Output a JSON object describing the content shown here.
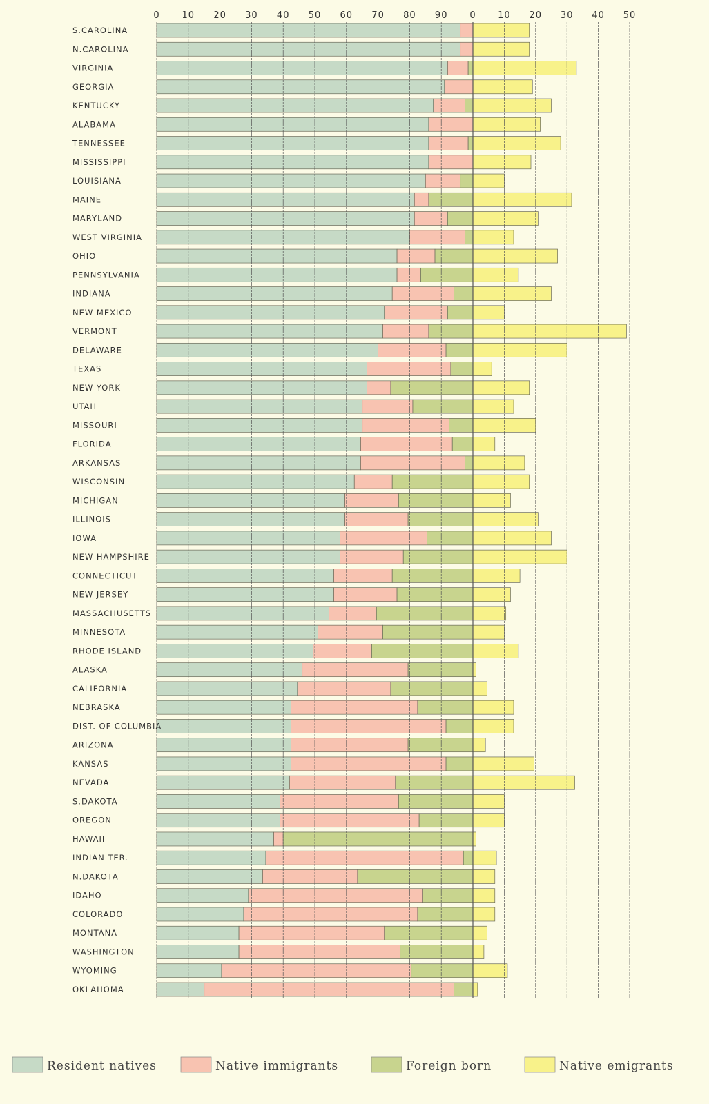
{
  "chart_data": {
    "type": "bar",
    "orientation": "horizontal",
    "stacked": true,
    "left_axis": {
      "ticks": [
        "0",
        "10",
        "20",
        "30",
        "40",
        "50",
        "60",
        "70",
        "80",
        "90"
      ],
      "range": [
        0,
        100
      ]
    },
    "right_axis": {
      "ticks": [
        "0",
        "10",
        "20",
        "30",
        "40",
        "50"
      ],
      "range": [
        0,
        50
      ]
    },
    "grid": true,
    "legend_position": "bottom",
    "colors": {
      "resident": "#c6dac6",
      "immigrant": "#f8c3b1",
      "foreign": "#c8d48e",
      "emigrant": "#f8f28a",
      "background": "#fcfbe6"
    },
    "categories": [
      "S.CAROLINA",
      "N.CAROLINA",
      "VIRGINIA",
      "GEORGIA",
      "KENTUCKY",
      "ALABAMA",
      "TENNESSEE",
      "MISSISSIPPI",
      "LOUISIANA",
      "MAINE",
      "MARYLAND",
      "WEST VIRGINIA",
      "OHIO",
      "PENNSYLVANIA",
      "INDIANA",
      "NEW MEXICO",
      "VERMONT",
      "DELAWARE",
      "TEXAS",
      "NEW YORK",
      "UTAH",
      "MISSOURI",
      "FLORIDA",
      "ARKANSAS",
      "WISCONSIN",
      "MICHIGAN",
      "ILLINOIS",
      "IOWA",
      "NEW HAMPSHIRE",
      "CONNECTICUT",
      "NEW JERSEY",
      "MASSACHUSETTS",
      "MINNESOTA",
      "RHODE ISLAND",
      "ALASKA",
      "CALIFORNIA",
      "NEBRASKA",
      "DIST. OF COLUMBIA",
      "ARIZONA",
      "KANSAS",
      "NEVADA",
      "S.DAKOTA",
      "OREGON",
      "HAWAII",
      "INDIAN TER.",
      "N.DAKOTA",
      "IDAHO",
      "COLORADO",
      "MONTANA",
      "WASHINGTON",
      "WYOMING",
      "OKLAHOMA"
    ],
    "series": [
      {
        "name": "Resident natives",
        "values": [
          96,
          96,
          92,
          91,
          87.5,
          86,
          86,
          86,
          85,
          81.5,
          81.5,
          80,
          76,
          76,
          74.5,
          72,
          71.5,
          70,
          66.5,
          66.5,
          65,
          65,
          64.5,
          64.5,
          62.5,
          59.5,
          59.5,
          58,
          58,
          56,
          56,
          54.5,
          51,
          49.5,
          46,
          44.5,
          42.5,
          42.5,
          42.5,
          42.5,
          42,
          39,
          39,
          37,
          34.5,
          33.5,
          29,
          27.5,
          26,
          26,
          20.5,
          15
        ]
      },
      {
        "name": "Native immigrants",
        "values": [
          4,
          4,
          6.5,
          9,
          10,
          14,
          12.5,
          14,
          11,
          4.5,
          10.5,
          17.5,
          12,
          7.5,
          19.5,
          20,
          14.5,
          21.5,
          26.5,
          7.5,
          16,
          27.5,
          29,
          33,
          12,
          17,
          20,
          27.5,
          20,
          18.5,
          20,
          15,
          20.5,
          18.5,
          33.5,
          29.5,
          40,
          49,
          37,
          49,
          33.5,
          37.5,
          44,
          3,
          62.5,
          30,
          55,
          55,
          46,
          51,
          60,
          79
        ]
      },
      {
        "name": "Foreign born",
        "values": [
          0,
          0,
          1.5,
          0,
          2.5,
          0,
          1.5,
          0,
          4,
          14,
          8,
          2.5,
          12,
          16.5,
          6,
          8,
          14,
          8.5,
          7,
          26,
          19,
          7.5,
          6.5,
          2.5,
          25.5,
          23.5,
          20.5,
          14.5,
          22,
          25.5,
          24,
          30.5,
          28.5,
          32,
          20.5,
          26,
          17.5,
          8.5,
          20.5,
          8.5,
          24.5,
          23.5,
          17,
          60,
          3,
          36.5,
          16,
          17.5,
          28,
          23,
          19.5,
          6
        ]
      },
      {
        "name": "Native emigrants",
        "values": [
          18,
          18,
          33,
          19,
          25,
          21.5,
          28,
          18.5,
          10,
          31.5,
          21,
          13,
          27,
          14.5,
          25,
          10,
          49,
          30,
          6,
          18,
          13,
          20,
          7,
          16.5,
          18,
          12,
          21,
          25,
          30,
          15,
          12,
          10.5,
          10,
          14.5,
          1,
          4.5,
          13,
          13,
          4,
          19.5,
          32.5,
          10,
          10,
          1,
          7.5,
          7,
          7,
          7,
          4.5,
          3.5,
          11,
          1.5
        ]
      }
    ],
    "legend": [
      "Resident natives",
      "Native immigrants",
      "Foreign born",
      "Native emigrants"
    ]
  }
}
